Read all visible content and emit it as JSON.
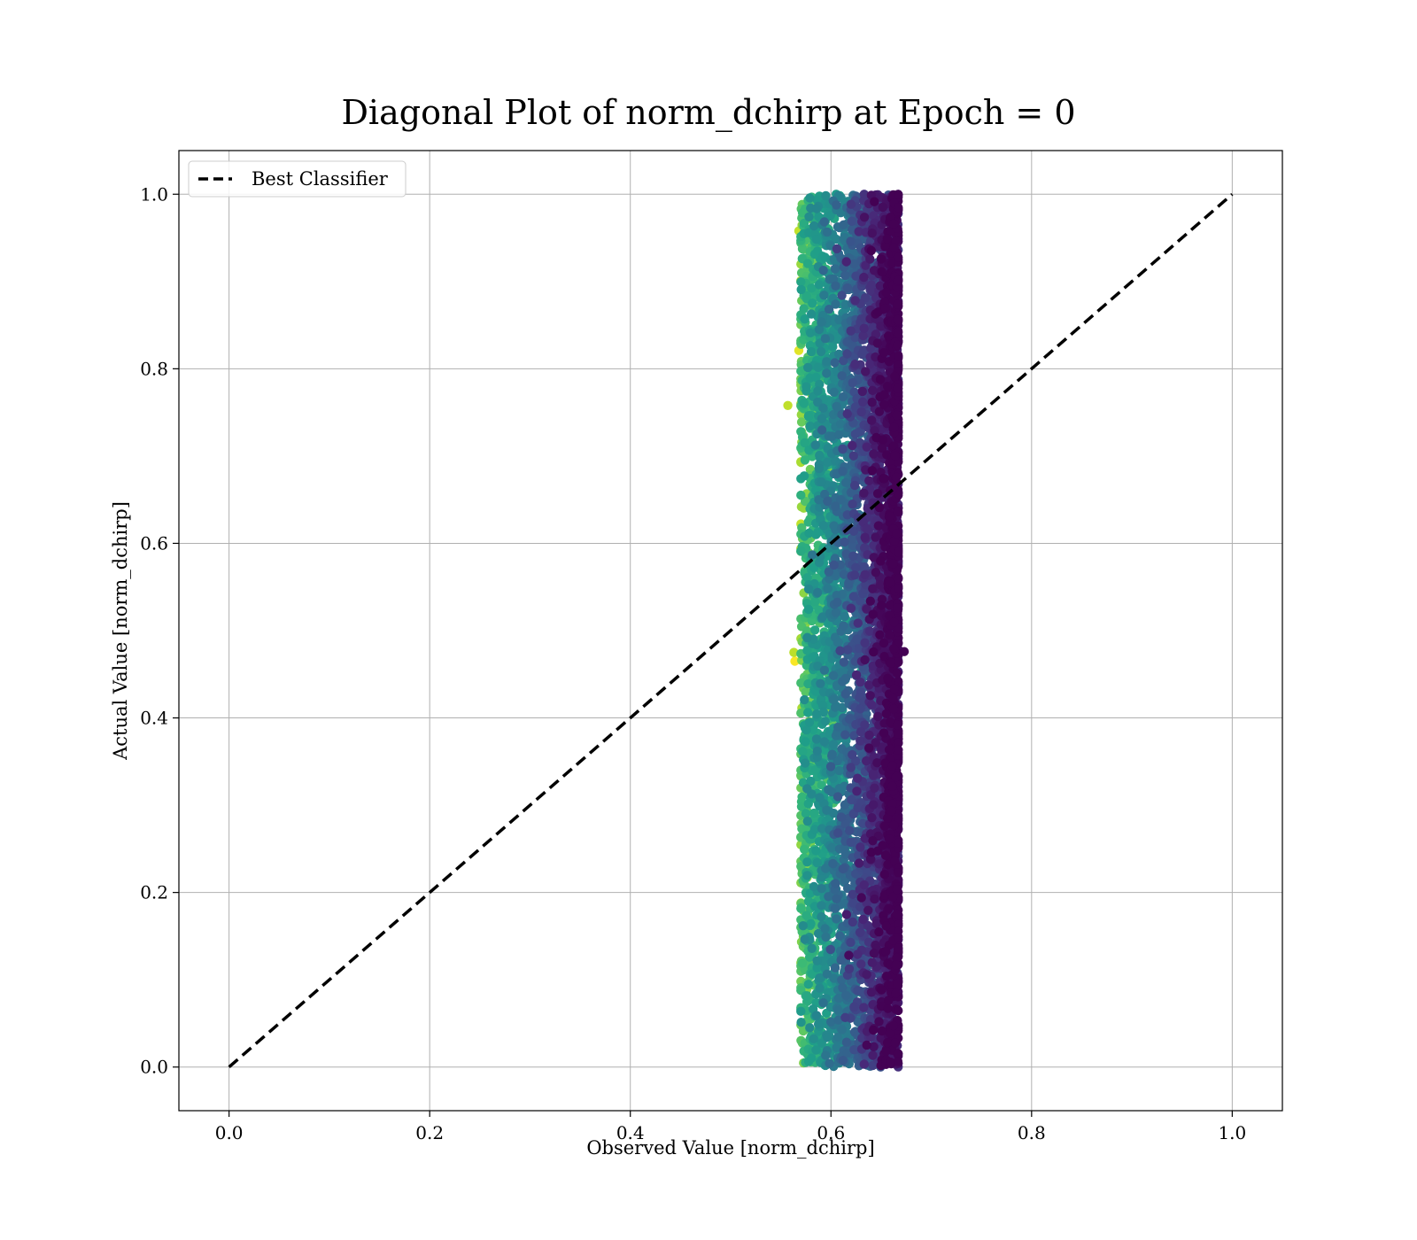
{
  "chart_data": {
    "type": "scatter",
    "title": "Diagonal Plot of norm_dchirp at Epoch = 0",
    "xlabel": "Observed Value [norm_dchirp]",
    "ylabel": "Actual Value [norm_dchirp]",
    "xlim": [
      -0.05,
      1.05
    ],
    "ylim": [
      -0.05,
      1.05
    ],
    "xticks": [
      0.0,
      0.2,
      0.4,
      0.6,
      0.8,
      1.0
    ],
    "xtick_labels": [
      "0.0",
      "0.2",
      "0.4",
      "0.6",
      "0.8",
      "1.0"
    ],
    "yticks": [
      0.0,
      0.2,
      0.4,
      0.6,
      0.8,
      1.0
    ],
    "ytick_labels": [
      "0.0",
      "0.2",
      "0.4",
      "0.6",
      "0.8",
      "1.0"
    ],
    "grid": true,
    "legend_position": "top-left",
    "colormap": "viridis",
    "reference_line": {
      "name": "Best Classifier",
      "x": [
        0.0,
        1.0
      ],
      "y": [
        0.0,
        1.0
      ],
      "style": "dashed",
      "color": "#000000"
    },
    "scatter": {
      "x_range": [
        0.56,
        0.67
      ],
      "x_bulk_range": [
        0.57,
        0.667
      ],
      "y_range": [
        0.0,
        1.0
      ],
      "approx_point_count": 6000,
      "outliers": [
        {
          "x": 0.557,
          "y": 0.758
        },
        {
          "x": 0.568,
          "y": 0.821
        },
        {
          "x": 0.564,
          "y": 0.465
        },
        {
          "x": 0.563,
          "y": 0.475
        },
        {
          "x": 0.57,
          "y": 0.188
        },
        {
          "x": 0.577,
          "y": 0.06
        },
        {
          "x": 0.575,
          "y": 0.022
        },
        {
          "x": 0.568,
          "y": 0.958
        },
        {
          "x": 0.673,
          "y": 0.476
        }
      ]
    }
  }
}
